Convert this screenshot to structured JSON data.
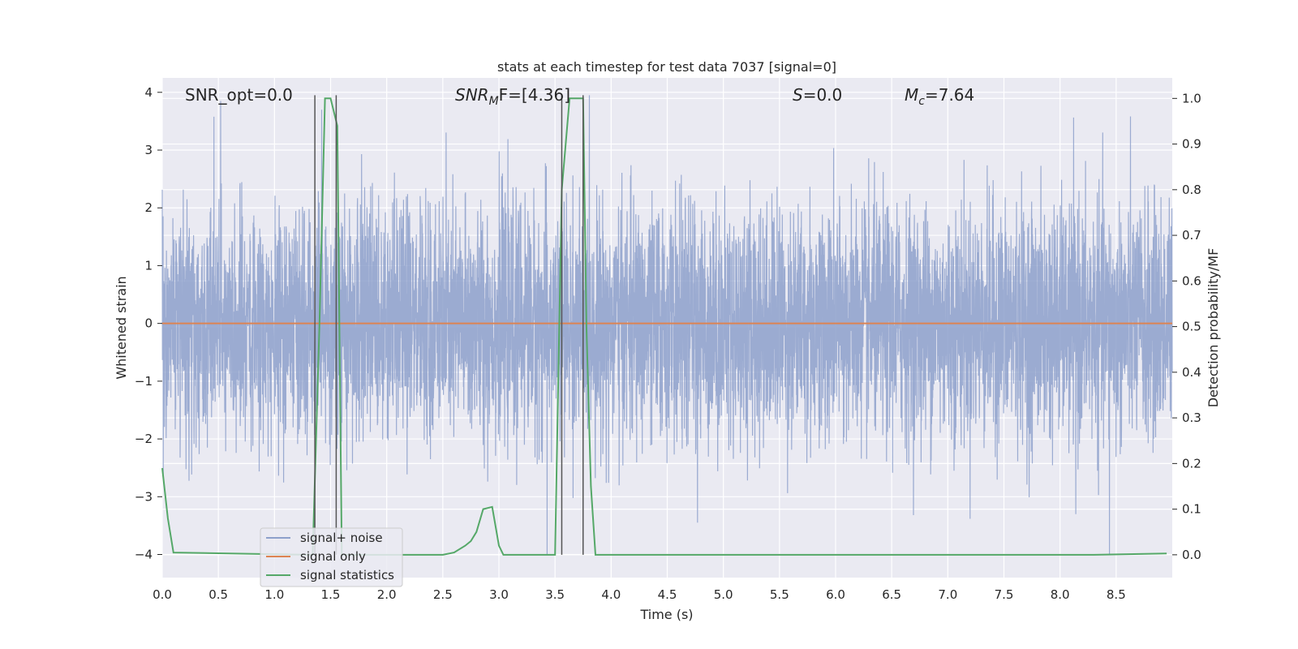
{
  "chart_data": {
    "type": "line",
    "title": "stats at each timestep for test data 7037 [signal=0]",
    "xlabel": "Time (s)",
    "ylabel": "Whitened strain",
    "ylabel_right": "Detection probability/MF",
    "xlim": [
      0.0,
      9.0
    ],
    "ylim": [
      -4.4,
      4.25
    ],
    "ylim_right": [
      -0.05,
      1.045
    ],
    "x_ticks": [
      "0.0",
      "0.5",
      "1.0",
      "1.5",
      "2.0",
      "2.5",
      "3.0",
      "3.5",
      "4.0",
      "4.5",
      "5.0",
      "5.5",
      "6.0",
      "6.5",
      "7.0",
      "7.5",
      "8.0",
      "8.5"
    ],
    "y_ticks": [
      "−4",
      "−3",
      "−2",
      "−1",
      "0",
      "1",
      "2",
      "3",
      "4"
    ],
    "y_ticks_right": [
      "0.0",
      "0.1",
      "0.2",
      "0.3",
      "0.4",
      "0.5",
      "0.6",
      "0.7",
      "0.8",
      "0.9",
      "1.0"
    ],
    "grid": true,
    "legend_position": "lower-left",
    "annotations": [
      {
        "id": "snr-opt",
        "text": "SNR_opt=0.0"
      },
      {
        "id": "snr-mf",
        "text": "SNR",
        "sub": "M",
        "tail": "F=[4.36]"
      },
      {
        "id": "s-val",
        "text": "S",
        "tail": "=0.0"
      },
      {
        "id": "mc-val",
        "text": "M",
        "sub": "c",
        "tail": "=7.64"
      }
    ],
    "series": [
      {
        "name": "signal+ noise",
        "color": "#8da0cb",
        "kind": "noise",
        "sigma": 1.0,
        "y_range": [
          -4.0,
          3.95
        ],
        "notable_spikes": [
          [
            0.52,
            3.85
          ],
          [
            3.43,
            -4.0
          ],
          [
            8.44,
            -4.0
          ],
          [
            4.77,
            -3.45
          ],
          [
            8.14,
            -3.3
          ],
          [
            1.42,
            3.7
          ]
        ]
      },
      {
        "name": "signal only",
        "color": "#dd8452",
        "x": [
          0.0,
          9.0
        ],
        "y": [
          0.0,
          0.0
        ]
      },
      {
        "name": "signal statistics",
        "color": "#55a868",
        "axis": "right",
        "x": [
          0.0,
          0.05,
          0.1,
          1.3,
          1.34,
          1.4,
          1.45,
          1.5,
          1.56,
          1.6,
          2.5,
          2.6,
          2.7,
          2.75,
          2.8,
          2.86,
          2.94,
          3.0,
          3.04,
          3.1,
          3.5,
          3.56,
          3.63,
          3.68,
          3.75,
          3.78,
          3.82,
          3.86,
          8.3,
          8.95
        ],
        "y": [
          0.19,
          0.08,
          0.005,
          0.0,
          0.0,
          0.5,
          1.0,
          1.0,
          0.94,
          0.0,
          0.0,
          0.005,
          0.02,
          0.03,
          0.05,
          0.1,
          0.105,
          0.02,
          0.0,
          0.0,
          0.0,
          0.8,
          1.0,
          1.0,
          1.0,
          0.5,
          0.15,
          0.0,
          0.0,
          0.003
        ]
      }
    ],
    "vertical_lines": {
      "color": "#555555",
      "x": [
        1.36,
        1.55,
        3.56,
        3.75
      ],
      "top": 1.0,
      "bottom": 0.0
    }
  }
}
